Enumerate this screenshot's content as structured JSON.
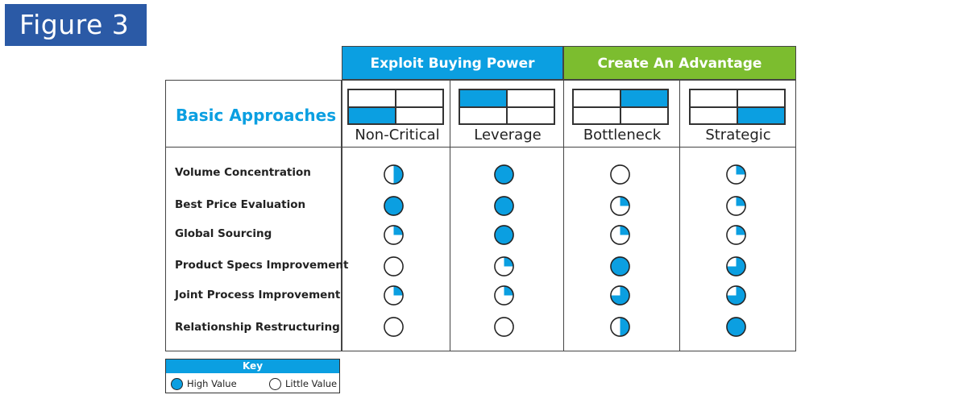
{
  "figure_label": "Figure 3",
  "groups": [
    {
      "label": "Exploit Buying Power",
      "color": "#0b9fe1"
    },
    {
      "label": "Create An Advantage",
      "color": "#7cbd2f"
    }
  ],
  "approach_title": "Basic Approaches",
  "columns": [
    {
      "name": "Non-Critical",
      "highlight": "bottom-left"
    },
    {
      "name": "Leverage",
      "highlight": "top-left"
    },
    {
      "name": "Bottleneck",
      "highlight": "top-right"
    },
    {
      "name": "Strategic",
      "highlight": "bottom-right"
    }
  ],
  "rows": [
    {
      "label": "Volume Concentration",
      "ratings": [
        0.5,
        1,
        0,
        0.25
      ]
    },
    {
      "label": "Best Price Evaluation",
      "ratings": [
        1,
        1,
        0.25,
        0.25
      ]
    },
    {
      "label": "Global Sourcing",
      "ratings": [
        0.25,
        1,
        0.25,
        0.25
      ]
    },
    {
      "label": "Product Specs Improvement",
      "ratings": [
        0,
        0.25,
        1,
        0.75
      ]
    },
    {
      "label": "Joint Process Improvement",
      "ratings": [
        0.25,
        0.25,
        0.75,
        0.75
      ]
    },
    {
      "label": "Relationship Restructuring",
      "ratings": [
        0,
        0,
        0.5,
        1
      ]
    }
  ],
  "key": {
    "title": "Key",
    "high": "High Value",
    "little": "Little Value"
  },
  "colors": {
    "accent": "#0b9fe1",
    "outline": "#222222"
  }
}
